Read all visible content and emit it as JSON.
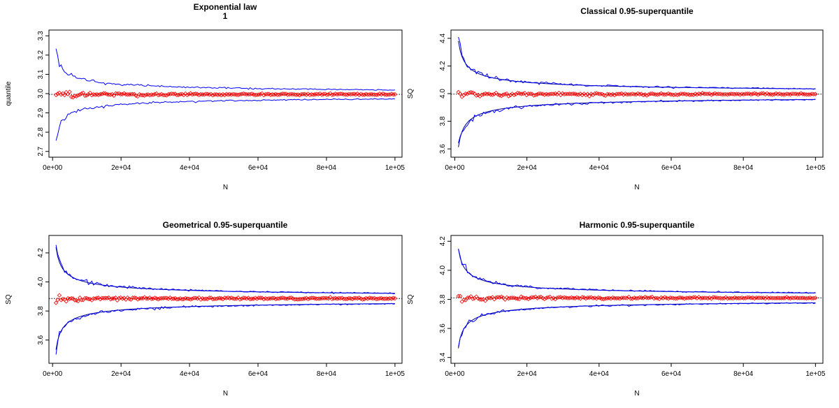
{
  "chart_data": [
    {
      "type": "line",
      "title": "Exponential law",
      "subtitle": "1",
      "xlabel": "N",
      "ylabel": "quantile",
      "xlim": [
        1000,
        100000
      ],
      "ylim": [
        2.67,
        3.33
      ],
      "x_ticks": [
        "0e+00",
        "2e+04",
        "4e+04",
        "6e+04",
        "8e+04",
        "1e+05"
      ],
      "x_tick_values": [
        0,
        20000,
        40000,
        60000,
        80000,
        100000
      ],
      "y_ticks": [
        "2.7",
        "2.8",
        "2.9",
        "3.0",
        "3.1",
        "3.2",
        "3.3"
      ],
      "y_tick_values": [
        2.7,
        2.8,
        2.9,
        3.0,
        3.1,
        3.2,
        3.3
      ],
      "reference_line": 2.996,
      "true_value": 2.996,
      "estimate_spread": 0.8,
      "bound_coefficient": 7.4,
      "colors": {
        "bounds": "#0000ff",
        "bounds_theory": "#00008b",
        "estimates": "#ff0000",
        "reference": "#000000"
      },
      "show_theory_bounds": false,
      "series": [
        {
          "name": "",
          "kind": "upper-bound",
          "x_start": 1000,
          "x_end": 100000
        },
        {
          "name": "",
          "kind": "estimate",
          "x_start": 1000,
          "x_end": 100000
        },
        {
          "name": "",
          "kind": "lower-bound",
          "x_start": 1000,
          "x_end": 100000
        }
      ]
    },
    {
      "type": "line",
      "title": "Classical 0.95-superquantile",
      "subtitle": "",
      "xlabel": "N",
      "ylabel": "SQ",
      "xlim": [
        1000,
        100000
      ],
      "ylim": [
        3.54,
        4.46
      ],
      "x_ticks": [
        "0e+00",
        "2e+04",
        "4e+04",
        "6e+04",
        "8e+04",
        "1e+05"
      ],
      "x_tick_values": [
        0,
        20000,
        40000,
        60000,
        80000,
        100000
      ],
      "y_ticks": [
        "3.6",
        "3.8",
        "4.0",
        "4.2",
        "4.4"
      ],
      "y_tick_values": [
        3.6,
        3.8,
        4.0,
        4.2,
        4.4
      ],
      "reference_line": 3.996,
      "true_value": 3.996,
      "estimate_spread": 0.8,
      "bound_coefficient": 12.5,
      "colors": {
        "bounds": "#0000ff",
        "bounds_theory": "#00008b",
        "estimates": "#ff0000",
        "reference": "#000000"
      },
      "show_theory_bounds": true,
      "series": [
        {
          "name": "",
          "kind": "upper-bound",
          "x_start": 1000,
          "x_end": 100000
        },
        {
          "name": "",
          "kind": "estimate",
          "x_start": 1000,
          "x_end": 100000
        },
        {
          "name": "",
          "kind": "lower-bound",
          "x_start": 1000,
          "x_end": 100000
        }
      ]
    },
    {
      "type": "line",
      "title": "Geometrical 0.95-superquantile",
      "subtitle": "",
      "xlabel": "N",
      "ylabel": "SQ",
      "xlim": [
        1000,
        100000
      ],
      "ylim": [
        3.44,
        4.32
      ],
      "x_ticks": [
        "0e+00",
        "2e+04",
        "4e+04",
        "6e+04",
        "8e+04",
        "1e+05"
      ],
      "x_tick_values": [
        0,
        20000,
        40000,
        60000,
        80000,
        100000
      ],
      "y_ticks": [
        "3.6",
        "3.8",
        "4.0",
        "4.2"
      ],
      "y_tick_values": [
        3.6,
        3.8,
        4.0,
        4.2
      ],
      "reference_line": 3.886,
      "true_value": 3.886,
      "estimate_spread": 0.8,
      "bound_coefficient": 11.5,
      "colors": {
        "bounds": "#0000ff",
        "bounds_theory": "#00008b",
        "estimates": "#ff0000",
        "reference": "#000000"
      },
      "show_theory_bounds": true,
      "series": [
        {
          "name": "",
          "kind": "upper-bound",
          "x_start": 1000,
          "x_end": 100000
        },
        {
          "name": "",
          "kind": "estimate",
          "x_start": 1000,
          "x_end": 100000
        },
        {
          "name": "",
          "kind": "lower-bound",
          "x_start": 1000,
          "x_end": 100000
        }
      ]
    },
    {
      "type": "line",
      "title": "Harmonic 0.95-superquantile",
      "subtitle": "",
      "xlabel": "N",
      "ylabel": "SQ",
      "xlim": [
        1000,
        100000
      ],
      "ylim": [
        3.36,
        4.24
      ],
      "x_ticks": [
        "0e+00",
        "2e+04",
        "4e+04",
        "6e+04",
        "8e+04",
        "1e+05"
      ],
      "x_tick_values": [
        0,
        20000,
        40000,
        60000,
        80000,
        100000
      ],
      "y_ticks": [
        "3.4",
        "3.6",
        "3.8",
        "4.0",
        "4.2"
      ],
      "y_tick_values": [
        3.4,
        3.6,
        3.8,
        4.0,
        4.2
      ],
      "reference_line": 3.81,
      "true_value": 3.81,
      "estimate_spread": 0.8,
      "bound_coefficient": 11.0,
      "colors": {
        "bounds": "#0000ff",
        "bounds_theory": "#00008b",
        "estimates": "#ff0000",
        "reference": "#000000"
      },
      "show_theory_bounds": true,
      "series": [
        {
          "name": "",
          "kind": "upper-bound",
          "x_start": 1000,
          "x_end": 100000
        },
        {
          "name": "",
          "kind": "estimate",
          "x_start": 1000,
          "x_end": 100000
        },
        {
          "name": "",
          "kind": "lower-bound",
          "x_start": 1000,
          "x_end": 100000
        }
      ]
    }
  ]
}
